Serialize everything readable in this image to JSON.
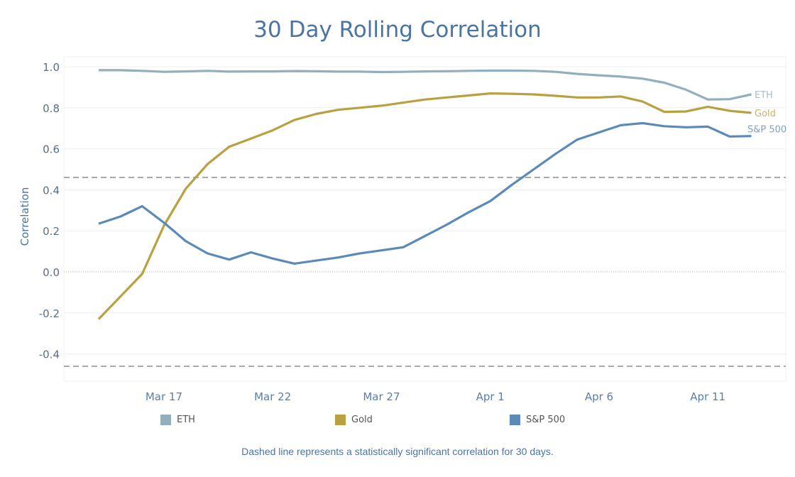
{
  "chart_data": {
    "type": "line",
    "title": "30 Day Rolling Correlation",
    "xlabel": "",
    "ylabel": "Correlation",
    "ylim": [
      -0.53,
      1.05
    ],
    "yticks": [
      "1.0",
      "0.8",
      "0.6",
      "0.4",
      "0.2",
      "0.0",
      "-0.2",
      "-0.4"
    ],
    "ytick_values": [
      1.0,
      0.8,
      0.6,
      0.4,
      0.2,
      0.0,
      -0.2,
      -0.4
    ],
    "xticks": [
      "Mar 17",
      "Mar 22",
      "Mar 27",
      "Apr 1",
      "Apr 6",
      "Apr 11"
    ],
    "xtick_index": [
      3,
      8,
      13,
      18,
      23,
      28
    ],
    "x_start": "Mar 14",
    "x_end": "Apr 13",
    "significance_lines": [
      0.46,
      -0.46
    ],
    "grid": true,
    "legend_position": "bottom",
    "series": [
      {
        "name": "ETH",
        "color": "#93aebd",
        "values": [
          0.983,
          0.983,
          0.98,
          0.975,
          0.977,
          0.98,
          0.976,
          0.977,
          0.977,
          0.979,
          0.978,
          0.976,
          0.976,
          0.974,
          0.975,
          0.977,
          0.978,
          0.98,
          0.981,
          0.981,
          0.98,
          0.975,
          0.965,
          0.958,
          0.952,
          0.942,
          0.922,
          0.888,
          0.84,
          0.842,
          0.865
        ]
      },
      {
        "name": "Gold",
        "color": "#b9a040",
        "values": [
          -0.23,
          -0.12,
          -0.01,
          0.225,
          0.405,
          0.525,
          0.61,
          0.65,
          0.69,
          0.74,
          0.77,
          0.79,
          0.8,
          0.81,
          0.825,
          0.84,
          0.85,
          0.86,
          0.87,
          0.868,
          0.865,
          0.858,
          0.85,
          0.85,
          0.855,
          0.83,
          0.78,
          0.782,
          0.805,
          0.785,
          0.775
        ]
      },
      {
        "name": "S&P 500",
        "color": "#5b8ab8",
        "values": [
          0.235,
          0.27,
          0.32,
          0.24,
          0.15,
          0.09,
          0.06,
          0.095,
          0.065,
          0.04,
          0.055,
          0.07,
          0.09,
          0.105,
          0.12,
          0.175,
          0.23,
          0.29,
          0.345,
          0.425,
          0.5,
          0.575,
          0.645,
          0.68,
          0.715,
          0.725,
          0.71,
          0.705,
          0.708,
          0.66,
          0.662
        ]
      }
    ],
    "note": "Dashed line represents a statistically significant correlation for 30 days."
  }
}
